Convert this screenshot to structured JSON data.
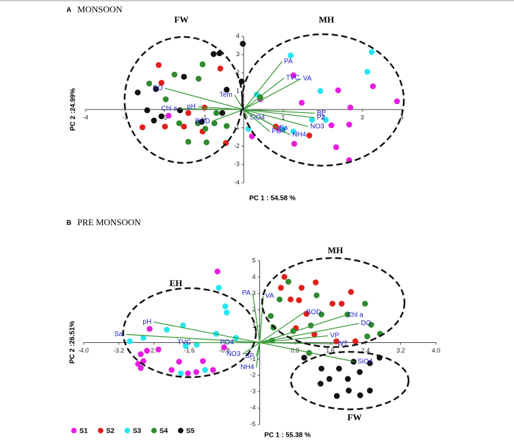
{
  "chart_data": [
    {
      "type": "scatter",
      "panel": "A",
      "title": "MONSOON",
      "xlabel": "PC 1 : 54.58 %",
      "ylabel": "PC 2 :24.99%",
      "xlim": [
        -4,
        4
      ],
      "ylim": [
        -4,
        4
      ],
      "xticks": [
        -4,
        -3,
        -2,
        -1,
        1,
        2,
        3,
        4
      ],
      "yticks": [
        -4,
        -3,
        -2,
        -1,
        1,
        2,
        3,
        4
      ],
      "groups": [
        "FW",
        "MH"
      ],
      "series": [
        {
          "color": "#e81ee0",
          "x": [
            1.26,
            2.39,
            1.47,
            2.7,
            3.27,
            3.88,
            2.22,
            2.67,
            2.34,
            2.67,
            1.28,
            0.9,
            0.21,
            0.42,
            -1.9
          ],
          "values": [
            1.87,
            1.05,
            0.37,
            0.11,
            1.27,
            0.45,
            -0.86,
            -0.82,
            -2.06,
            -2.77,
            -1.87,
            -1.05,
            -1.46,
            0.56,
            -0.34
          ]
        },
        {
          "color": "#e3201b",
          "x": [
            -2.15,
            -2.56,
            -2.08,
            -1.51,
            -1.04,
            -0.59,
            -0.45,
            -0.99,
            0.81,
            1.66,
            -1.99,
            -1.4
          ],
          "values": [
            2.43,
            -0.97,
            1.46,
            -0.93,
            -1.2,
            2.24,
            -1.83,
            0.11,
            -0.93,
            -1.42,
            -0.93,
            -0.19
          ]
        },
        {
          "color": "#26e6f2",
          "x": [
            1.19,
            1.94,
            3.13,
            3.24,
            1.73,
            2.08,
            1.0,
            0.33,
            1.26,
            0.12
          ],
          "values": [
            2.95,
            1.01,
            2.06,
            3.14,
            -0.56,
            -0.56,
            -1.08,
            0.82,
            -1.2,
            -1.05
          ]
        },
        {
          "color": "#2e8b2e",
          "x": [
            -2.39,
            -1.75,
            -1.04,
            -1.14,
            -1.63,
            -1.4,
            -1.16,
            -0.97,
            -0.74,
            -0.43,
            -0.94,
            -0.69,
            -1.97,
            0.42
          ],
          "values": [
            1.42,
            1.91,
            2.47,
            1.68,
            -0.75,
            -1.76,
            -0.75,
            -1.05,
            -0.75,
            -0.9,
            -1.79,
            -0.19,
            0.56,
            0.67
          ]
        },
        {
          "color": "#111111",
          "x": [
            -2.68,
            -2.22,
            -2.44,
            -2.27,
            -1.51,
            -0.76,
            -0.61,
            -0.43,
            -1.06,
            -0.54,
            -0.02,
            -0.05,
            -1.61,
            -2.08
          ],
          "values": [
            0.93,
            1.12,
            -0.04,
            -0.6,
            1.79,
            3.03,
            3.07,
            1.08,
            -0.67,
            -0.19,
            3.59,
            1.53,
            -0.04,
            -0.37
          ]
        }
      ],
      "loadings": [
        {
          "label": "PA",
          "x": 0.97,
          "y": 2.62
        },
        {
          "label": "TVC",
          "x": 1.02,
          "y": 1.72
        },
        {
          "label": "VA",
          "x": 1.45,
          "y": 1.68
        },
        {
          "label": "DO",
          "x": -1.99,
          "y": 1.16
        },
        {
          "label": "Chl a",
          "x": -1.63,
          "y": 0.04
        },
        {
          "label": "pH",
          "x": -1.16,
          "y": 0.15
        },
        {
          "label": "BOD",
          "x": -0.8,
          "y": -0.64
        },
        {
          "label": "Tem",
          "x": -0.23,
          "y": 0.79
        },
        {
          "label": "SiO4",
          "x": 0.1,
          "y": -0.45
        },
        {
          "label": "PO4",
          "x": 0.66,
          "y": -1.2
        },
        {
          "label": "NH4",
          "x": 1.18,
          "y": -1.38
        },
        {
          "label": "NO3",
          "x": 1.63,
          "y": -0.93
        },
        {
          "label": "BP",
          "x": 1.8,
          "y": -0.2
        },
        {
          "label": "P2",
          "x": 1.8,
          "y": -0.45
        },
        {
          "label": "Sa",
          "x": 0.85,
          "y": -1.0
        }
      ]
    },
    {
      "type": "scatter",
      "panel": "B",
      "title": "PRE MONSOON",
      "xlabel": "PC 1 : 55.38 %",
      "ylabel": "PC 2 :26.51%",
      "xlim": [
        -4,
        4
      ],
      "ylim": [
        -5,
        5
      ],
      "xticks": [
        {
          "value": -4,
          "label": "-4.0"
        },
        -3.2,
        -2.4,
        -1.6,
        -0.8,
        0.8,
        1.6,
        2.4,
        3.2,
        {
          "value": 4,
          "label": "4.0"
        }
      ],
      "yticks": [
        -5,
        -4,
        -3,
        -2,
        -1,
        1,
        2,
        3,
        4,
        5
      ],
      "groups": [
        "EH",
        "MH",
        "FW"
      ],
      "series": [
        {
          "name": "S1",
          "color": "#e81ee0",
          "x": [
            -2.7,
            -2.76,
            -2.64,
            -2.56,
            -2.3,
            -2.5,
            -2.0,
            -1.83,
            -1.63,
            -1.44,
            -1.29,
            -1.06,
            -0.81,
            -0.96,
            -2.7
          ],
          "values": [
            -0.71,
            -1.3,
            -1.13,
            -0.5,
            -0.42,
            0.84,
            -1.67,
            -1.17,
            -1.88,
            -1.8,
            -1.13,
            -1.67,
            -0.29,
            4.35,
            -1.55
          ]
        },
        {
          "name": "S2",
          "color": "#e3201b",
          "x": [
            0.48,
            0.56,
            0.7,
            0.89,
            0.95,
            1.27,
            1.65,
            1.86,
            2.07,
            1.06,
            1.24,
            1.74,
            2.17,
            0.82
          ],
          "values": [
            3.35,
            4.02,
            2.64,
            2.59,
            3.35,
            3.68,
            2.38,
            2.38,
            3.1,
            1.76,
            0.5,
            0.08,
            0.08,
            0.88
          ]
        },
        {
          "name": "S3",
          "color": "#26e6f2",
          "x": [
            -2.95,
            -2.64,
            -2.11,
            -1.74,
            -1.79,
            -1.68,
            -1.24,
            -0.93,
            -0.78,
            -0.75,
            -0.99,
            -0.54,
            -1.43
          ],
          "values": [
            0.08,
            0.29,
            0.79,
            1.05,
            -1.88,
            -0.21,
            -1.67,
            3.35,
            2.22,
            1.84,
            0.54,
            0.29,
            -0.13
          ]
        },
        {
          "name": "S4",
          "color": "#2e8b2e",
          "x": [
            0.25,
            0.45,
            0.65,
            1.29,
            1.4,
            1.99,
            2.39,
            2.53,
            2.73,
            2.44,
            0.76,
            1.16,
            1.12,
            0.31,
            0.28
          ],
          "values": [
            1.63,
            2.64,
            3.72,
            2.89,
            1.72,
            1.72,
            2.38,
            1.09,
            0.54,
            0.38,
            0.71,
            1.05,
            -0.63,
            0.92,
            0.13
          ]
        },
        {
          "name": "S5",
          "color": "#111111",
          "x": [
            1.01,
            1.4,
            1.58,
            1.8,
            2.0,
            2.27,
            2.5,
            2.72,
            1.75,
            2.02,
            2.28,
            2.5,
            2.13,
            1.38
          ],
          "values": [
            -0.92,
            -1.59,
            -2.22,
            -1.59,
            -2.22,
            -1.8,
            -1.26,
            -0.92,
            -3.26,
            -2.93,
            -3.22,
            -2.93,
            -1.17,
            -2.51
          ]
        }
      ],
      "loadings": [
        {
          "label": "PA",
          "x": -0.16,
          "y": 3.01
        },
        {
          "label": "VA",
          "x": 0.08,
          "y": 2.85
        },
        {
          "label": "Sal",
          "x": -3.03,
          "y": 0.5
        },
        {
          "label": "pH",
          "x": -2.41,
          "y": 1.26
        },
        {
          "label": "TVC",
          "x": -1.51,
          "y": 0.0
        },
        {
          "label": "PO4",
          "x": -0.54,
          "y": 0.0
        },
        {
          "label": "NO3",
          "x": -0.39,
          "y": -0.71
        },
        {
          "label": "BP",
          "x": -0.08,
          "y": -0.84
        },
        {
          "label": "NH4",
          "x": -0.08,
          "y": -1.51
        },
        {
          "label": "BOD",
          "x": 1.01,
          "y": 1.84
        },
        {
          "label": "Chl a",
          "x": 1.94,
          "y": 1.67
        },
        {
          "label": "DO",
          "x": 2.25,
          "y": 1.17
        },
        {
          "label": "VP",
          "x": 1.55,
          "y": 0.42
        },
        {
          "label": "WT",
          "x": 1.71,
          "y": -0.08
        },
        {
          "label": "SiO4",
          "x": 2.17,
          "y": -1.17
        }
      ]
    }
  ]
}
